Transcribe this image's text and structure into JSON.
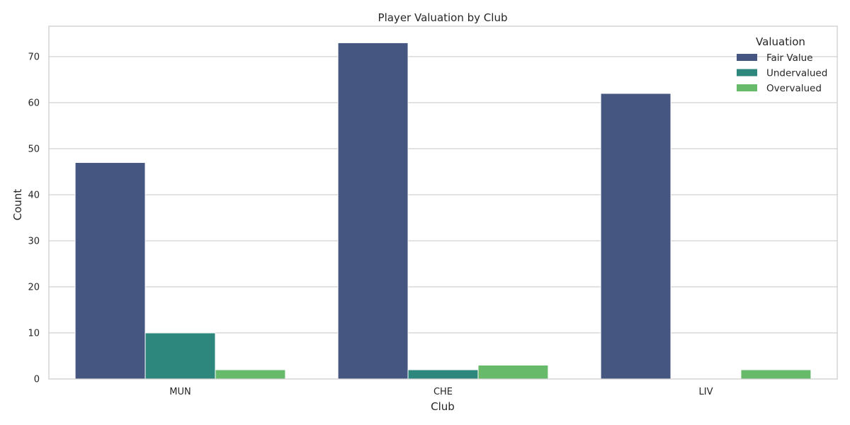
{
  "chart_data": {
    "type": "bar",
    "title": "Player Valuation by Club",
    "xlabel": "Club",
    "ylabel": "Count",
    "categories": [
      "MUN",
      "CHE",
      "LIV"
    ],
    "series": [
      {
        "name": "Fair Value",
        "values": [
          47,
          73,
          62
        ],
        "color": "#455681"
      },
      {
        "name": "Undervalued",
        "values": [
          10,
          2,
          0
        ],
        "color": "#2d877d"
      },
      {
        "name": "Overvalued",
        "values": [
          2,
          3,
          2
        ],
        "color": "#66ba6a"
      }
    ],
    "ylim": [
      0,
      76.6
    ],
    "yticks": [
      0,
      10,
      20,
      30,
      40,
      50,
      60,
      70
    ],
    "grid": true,
    "legend": {
      "title": "Valuation",
      "placement": "top-right"
    }
  }
}
